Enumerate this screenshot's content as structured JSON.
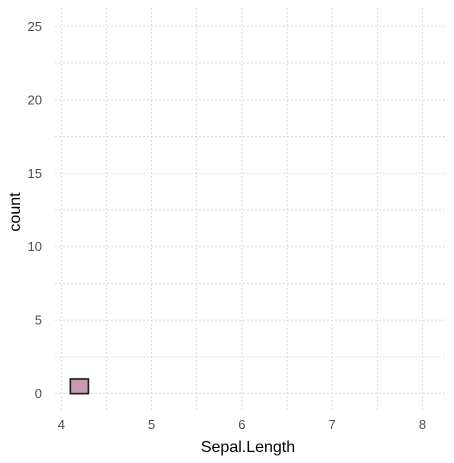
{
  "chart_data": {
    "type": "bar",
    "title": "",
    "xlabel": "Sepal.Length",
    "ylabel": "count",
    "bin_width": 0.2,
    "bins": [
      {
        "x": 4.2,
        "count": 1
      },
      {
        "x": 4.4,
        "count": 0
      },
      {
        "x": 4.6,
        "count": 0
      },
      {
        "x": 4.8,
        "count": 0
      },
      {
        "x": 5.0,
        "count": 0
      },
      {
        "x": 5.2,
        "count": 0
      },
      {
        "x": 5.4,
        "count": 0
      },
      {
        "x": 5.6,
        "count": 0
      },
      {
        "x": 5.8,
        "count": 0
      },
      {
        "x": 6.0,
        "count": 0
      },
      {
        "x": 6.2,
        "count": 0
      },
      {
        "x": 6.4,
        "count": 0
      },
      {
        "x": 6.6,
        "count": 0
      },
      {
        "x": 6.8,
        "count": 0
      },
      {
        "x": 7.0,
        "count": 0
      },
      {
        "x": 7.2,
        "count": 0
      },
      {
        "x": 7.4,
        "count": 0
      },
      {
        "x": 7.6,
        "count": 0
      },
      {
        "x": 7.8,
        "count": 0
      },
      {
        "x": 8.0,
        "count": 0
      }
    ],
    "xlim": [
      3.93,
      8.25
    ],
    "ylim": [
      -1.25,
      26.25
    ],
    "x_ticks": [
      4,
      5,
      6,
      7,
      8
    ],
    "y_ticks": [
      0,
      5,
      10,
      15,
      20,
      25
    ],
    "grid": true,
    "colors": {
      "fill": "#c59bb2",
      "outline": "#1a1a1a",
      "grid": "#d4d4d4",
      "tick_text": "#4d4d4d"
    }
  }
}
